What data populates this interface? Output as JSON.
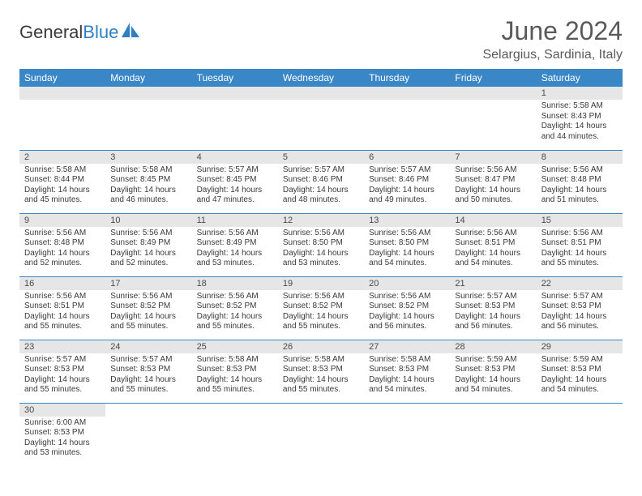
{
  "brand": {
    "name_part1": "General",
    "name_part2": "Blue",
    "icon_color": "#2f7fc2"
  },
  "header": {
    "month_title": "June 2024",
    "location": "Selargius, Sardinia, Italy"
  },
  "colors": {
    "header_bg": "#3a87c8",
    "header_text": "#ffffff",
    "daynum_bg": "#e6e6e6",
    "cell_border": "#3a87c8",
    "body_text": "#3a3a3a"
  },
  "days_of_week": [
    "Sunday",
    "Monday",
    "Tuesday",
    "Wednesday",
    "Thursday",
    "Friday",
    "Saturday"
  ],
  "weeks": [
    [
      {
        "num": "",
        "sunrise": "",
        "sunset": "",
        "daylight": ""
      },
      {
        "num": "",
        "sunrise": "",
        "sunset": "",
        "daylight": ""
      },
      {
        "num": "",
        "sunrise": "",
        "sunset": "",
        "daylight": ""
      },
      {
        "num": "",
        "sunrise": "",
        "sunset": "",
        "daylight": ""
      },
      {
        "num": "",
        "sunrise": "",
        "sunset": "",
        "daylight": ""
      },
      {
        "num": "",
        "sunrise": "",
        "sunset": "",
        "daylight": ""
      },
      {
        "num": "1",
        "sunrise": "Sunrise: 5:58 AM",
        "sunset": "Sunset: 8:43 PM",
        "daylight": "Daylight: 14 hours and 44 minutes."
      }
    ],
    [
      {
        "num": "2",
        "sunrise": "Sunrise: 5:58 AM",
        "sunset": "Sunset: 8:44 PM",
        "daylight": "Daylight: 14 hours and 45 minutes."
      },
      {
        "num": "3",
        "sunrise": "Sunrise: 5:58 AM",
        "sunset": "Sunset: 8:45 PM",
        "daylight": "Daylight: 14 hours and 46 minutes."
      },
      {
        "num": "4",
        "sunrise": "Sunrise: 5:57 AM",
        "sunset": "Sunset: 8:45 PM",
        "daylight": "Daylight: 14 hours and 47 minutes."
      },
      {
        "num": "5",
        "sunrise": "Sunrise: 5:57 AM",
        "sunset": "Sunset: 8:46 PM",
        "daylight": "Daylight: 14 hours and 48 minutes."
      },
      {
        "num": "6",
        "sunrise": "Sunrise: 5:57 AM",
        "sunset": "Sunset: 8:46 PM",
        "daylight": "Daylight: 14 hours and 49 minutes."
      },
      {
        "num": "7",
        "sunrise": "Sunrise: 5:56 AM",
        "sunset": "Sunset: 8:47 PM",
        "daylight": "Daylight: 14 hours and 50 minutes."
      },
      {
        "num": "8",
        "sunrise": "Sunrise: 5:56 AM",
        "sunset": "Sunset: 8:48 PM",
        "daylight": "Daylight: 14 hours and 51 minutes."
      }
    ],
    [
      {
        "num": "9",
        "sunrise": "Sunrise: 5:56 AM",
        "sunset": "Sunset: 8:48 PM",
        "daylight": "Daylight: 14 hours and 52 minutes."
      },
      {
        "num": "10",
        "sunrise": "Sunrise: 5:56 AM",
        "sunset": "Sunset: 8:49 PM",
        "daylight": "Daylight: 14 hours and 52 minutes."
      },
      {
        "num": "11",
        "sunrise": "Sunrise: 5:56 AM",
        "sunset": "Sunset: 8:49 PM",
        "daylight": "Daylight: 14 hours and 53 minutes."
      },
      {
        "num": "12",
        "sunrise": "Sunrise: 5:56 AM",
        "sunset": "Sunset: 8:50 PM",
        "daylight": "Daylight: 14 hours and 53 minutes."
      },
      {
        "num": "13",
        "sunrise": "Sunrise: 5:56 AM",
        "sunset": "Sunset: 8:50 PM",
        "daylight": "Daylight: 14 hours and 54 minutes."
      },
      {
        "num": "14",
        "sunrise": "Sunrise: 5:56 AM",
        "sunset": "Sunset: 8:51 PM",
        "daylight": "Daylight: 14 hours and 54 minutes."
      },
      {
        "num": "15",
        "sunrise": "Sunrise: 5:56 AM",
        "sunset": "Sunset: 8:51 PM",
        "daylight": "Daylight: 14 hours and 55 minutes."
      }
    ],
    [
      {
        "num": "16",
        "sunrise": "Sunrise: 5:56 AM",
        "sunset": "Sunset: 8:51 PM",
        "daylight": "Daylight: 14 hours and 55 minutes."
      },
      {
        "num": "17",
        "sunrise": "Sunrise: 5:56 AM",
        "sunset": "Sunset: 8:52 PM",
        "daylight": "Daylight: 14 hours and 55 minutes."
      },
      {
        "num": "18",
        "sunrise": "Sunrise: 5:56 AM",
        "sunset": "Sunset: 8:52 PM",
        "daylight": "Daylight: 14 hours and 55 minutes."
      },
      {
        "num": "19",
        "sunrise": "Sunrise: 5:56 AM",
        "sunset": "Sunset: 8:52 PM",
        "daylight": "Daylight: 14 hours and 55 minutes."
      },
      {
        "num": "20",
        "sunrise": "Sunrise: 5:56 AM",
        "sunset": "Sunset: 8:52 PM",
        "daylight": "Daylight: 14 hours and 56 minutes."
      },
      {
        "num": "21",
        "sunrise": "Sunrise: 5:57 AM",
        "sunset": "Sunset: 8:53 PM",
        "daylight": "Daylight: 14 hours and 56 minutes."
      },
      {
        "num": "22",
        "sunrise": "Sunrise: 5:57 AM",
        "sunset": "Sunset: 8:53 PM",
        "daylight": "Daylight: 14 hours and 56 minutes."
      }
    ],
    [
      {
        "num": "23",
        "sunrise": "Sunrise: 5:57 AM",
        "sunset": "Sunset: 8:53 PM",
        "daylight": "Daylight: 14 hours and 55 minutes."
      },
      {
        "num": "24",
        "sunrise": "Sunrise: 5:57 AM",
        "sunset": "Sunset: 8:53 PM",
        "daylight": "Daylight: 14 hours and 55 minutes."
      },
      {
        "num": "25",
        "sunrise": "Sunrise: 5:58 AM",
        "sunset": "Sunset: 8:53 PM",
        "daylight": "Daylight: 14 hours and 55 minutes."
      },
      {
        "num": "26",
        "sunrise": "Sunrise: 5:58 AM",
        "sunset": "Sunset: 8:53 PM",
        "daylight": "Daylight: 14 hours and 55 minutes."
      },
      {
        "num": "27",
        "sunrise": "Sunrise: 5:58 AM",
        "sunset": "Sunset: 8:53 PM",
        "daylight": "Daylight: 14 hours and 54 minutes."
      },
      {
        "num": "28",
        "sunrise": "Sunrise: 5:59 AM",
        "sunset": "Sunset: 8:53 PM",
        "daylight": "Daylight: 14 hours and 54 minutes."
      },
      {
        "num": "29",
        "sunrise": "Sunrise: 5:59 AM",
        "sunset": "Sunset: 8:53 PM",
        "daylight": "Daylight: 14 hours and 54 minutes."
      }
    ],
    [
      {
        "num": "30",
        "sunrise": "Sunrise: 6:00 AM",
        "sunset": "Sunset: 8:53 PM",
        "daylight": "Daylight: 14 hours and 53 minutes."
      },
      {
        "num": "",
        "sunrise": "",
        "sunset": "",
        "daylight": ""
      },
      {
        "num": "",
        "sunrise": "",
        "sunset": "",
        "daylight": ""
      },
      {
        "num": "",
        "sunrise": "",
        "sunset": "",
        "daylight": ""
      },
      {
        "num": "",
        "sunrise": "",
        "sunset": "",
        "daylight": ""
      },
      {
        "num": "",
        "sunrise": "",
        "sunset": "",
        "daylight": ""
      },
      {
        "num": "",
        "sunrise": "",
        "sunset": "",
        "daylight": ""
      }
    ]
  ]
}
